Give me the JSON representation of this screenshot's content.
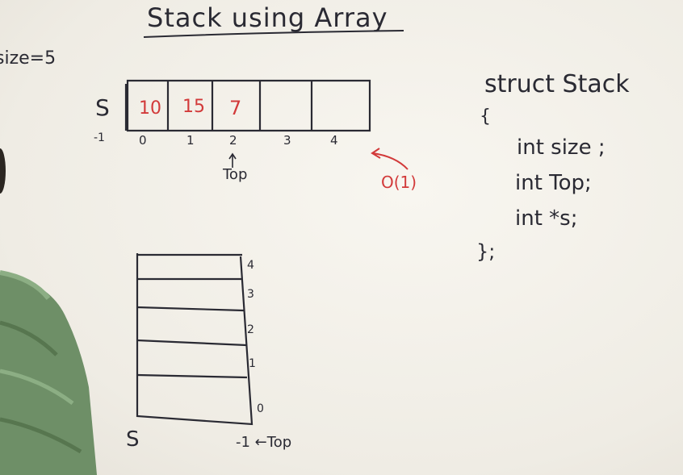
{
  "title": "Stack using Array",
  "size_note": "size=5",
  "array": {
    "name": "S",
    "minus_one": "-1",
    "cells": [
      "10",
      "15",
      "7",
      "",
      ""
    ],
    "indices": [
      "0",
      "1",
      "2",
      "3",
      "4"
    ],
    "top_label": "Top",
    "complexity": "O(1)"
  },
  "struct": {
    "line1": "struct Stack",
    "open_brace": "{",
    "fields": [
      "int size ;",
      "int Top;",
      "int *s;"
    ],
    "close": "};"
  },
  "vertical_stack": {
    "name": "S",
    "indices": [
      "4",
      "3",
      "2",
      "1",
      "0"
    ],
    "bottom_label": "-1 ←Top"
  },
  "colors": {
    "ink": "#2a2a33",
    "red_ink": "#d23a3a",
    "board": "#f4f1ea",
    "shirt": "#6e8f67"
  }
}
